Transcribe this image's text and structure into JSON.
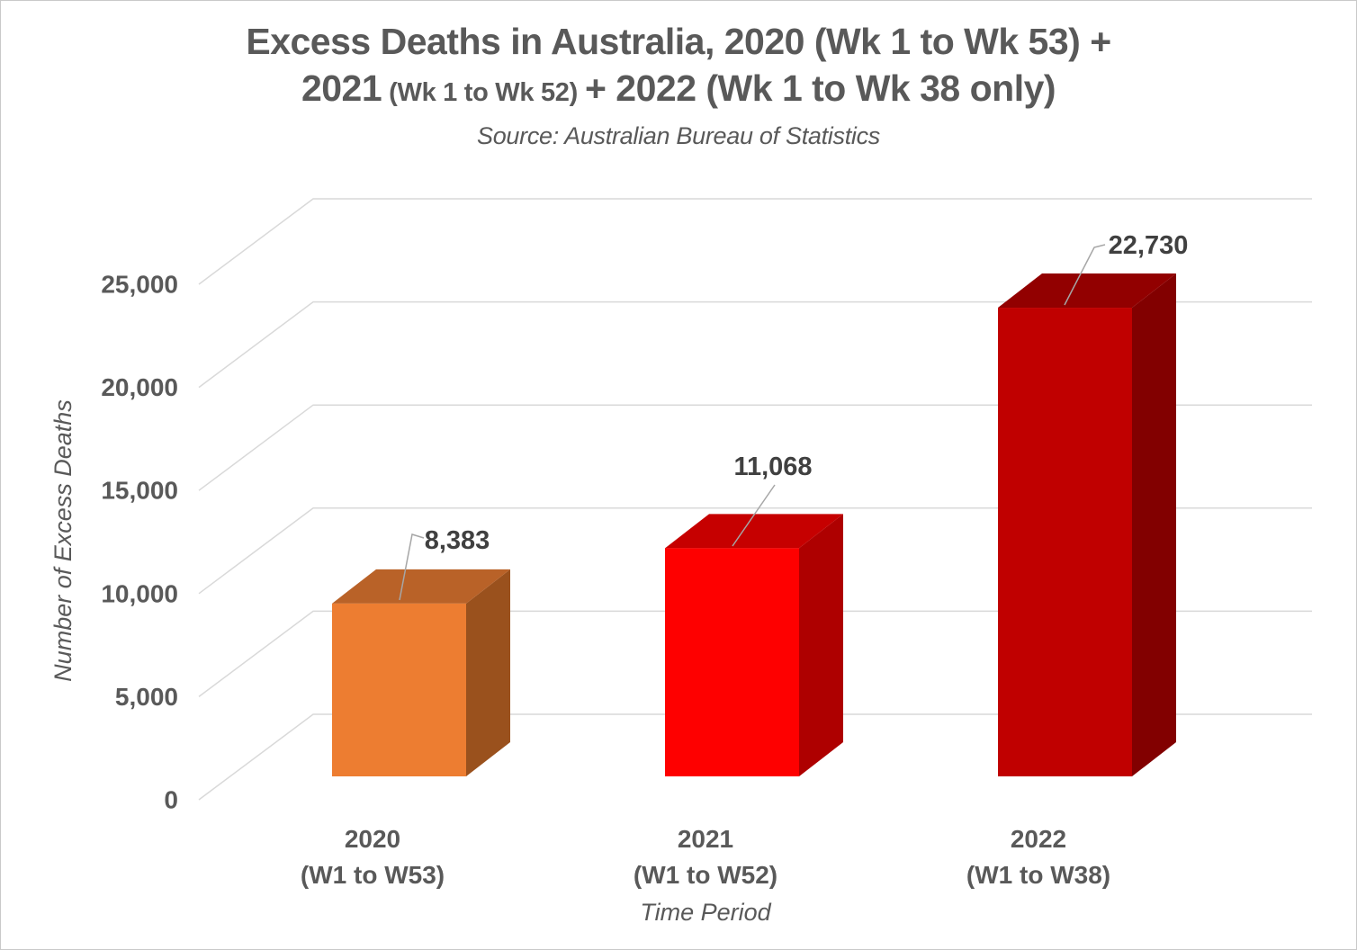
{
  "page": {
    "background": "#FFFFFF",
    "border_color": "#C9C9C9",
    "title_color": "#595959"
  },
  "title": {
    "line1": "Excess Deaths in Australia, 2020 (Wk 1 to Wk 53) +",
    "line2_large_a": "2021",
    "line2_small": "(Wk 1 to Wk 52)",
    "line2_large_b": "+ 2022 (Wk 1 to Wk 38 only)",
    "subtitle": "Source: Australian Bureau of Statistics"
  },
  "chart_data": {
    "type": "bar",
    "projection": "3d",
    "title": "Excess Deaths in Australia, 2020 (Wk 1 to Wk 53) + 2021 (Wk 1 to Wk 52) + 2022 (Wk 1 to Wk 38 only)",
    "source_note": "Source: Australian Bureau of Statistics",
    "xlabel": "Time Period",
    "ylabel": "Number of Excess Deaths",
    "ylim": [
      0,
      25000
    ],
    "ytick_interval": 5000,
    "grid": true,
    "legend": "none",
    "yticks": {
      "values": [
        0,
        5000,
        10000,
        15000,
        20000,
        25000
      ],
      "labels": [
        "0",
        "5,000",
        "10,000",
        "15,000",
        "20,000",
        "25,000"
      ]
    },
    "categories": [
      {
        "line1": "2020",
        "line2": "(W1 to W53)"
      },
      {
        "line1": "2021",
        "line2": "(W1 to W52)"
      },
      {
        "line1": "2022",
        "line2": "(W1 to W38)"
      }
    ],
    "series": [
      {
        "name": "Excess Deaths",
        "values": [
          8383,
          11068,
          22730
        ]
      }
    ],
    "data_labels": [
      "8,383",
      "11,068",
      "22,730"
    ],
    "bar_colors": [
      {
        "front": "#ED7D31",
        "top": "#B96228",
        "side": "#9A511D"
      },
      {
        "front": "#FE0000",
        "top": "#C60000",
        "side": "#AE0000"
      },
      {
        "front": "#C00000",
        "top": "#920000",
        "side": "#820000"
      }
    ],
    "gridline_color": "#D9D9D9",
    "leader_line_color": "#A6A6A6",
    "axis_text_color": "#595959",
    "data_label_color": "#404040"
  }
}
